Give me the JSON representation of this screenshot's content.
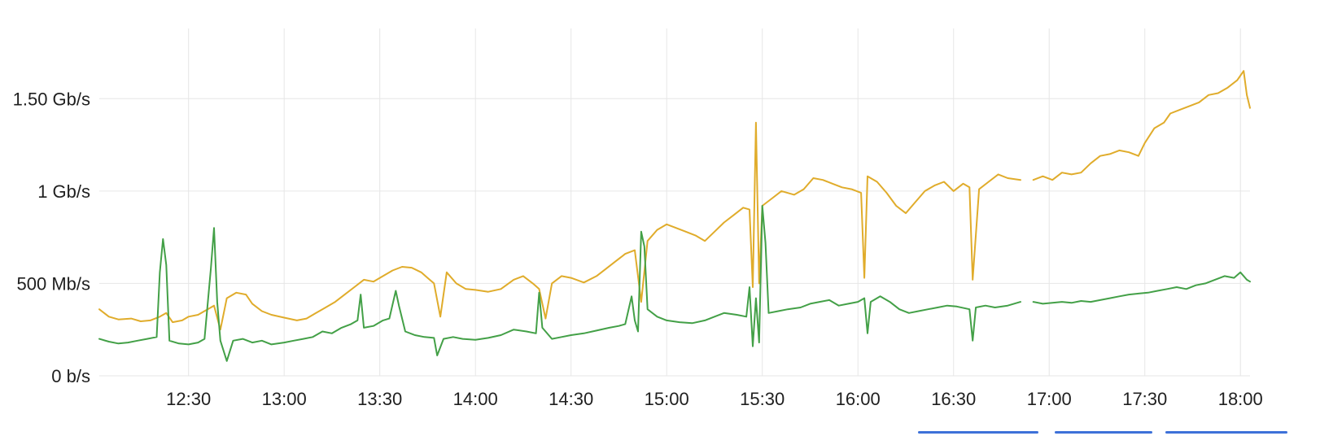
{
  "chart_data": {
    "type": "line",
    "title": "",
    "xlabel": "",
    "ylabel": "",
    "x_ticks": [
      "12:30",
      "13:00",
      "13:30",
      "14:00",
      "14:30",
      "15:00",
      "15:30",
      "16:00",
      "16:30",
      "17:00",
      "17:30",
      "18:00"
    ],
    "y_ticks": [
      {
        "label": "0 b/s",
        "value": 0
      },
      {
        "label": "500 Mb/s",
        "value": 500
      },
      {
        "label": "1 Gb/s",
        "value": 1000
      },
      {
        "label": "1.50 Gb/s",
        "value": 1500
      }
    ],
    "x_range": [
      "12:02",
      "18:03"
    ],
    "y_range_mbps": [
      0,
      1880
    ],
    "grid": true,
    "legend_placement": "bottom",
    "series": [
      {
        "color": "#e0ac2b",
        "points": [
          [
            "12:02",
            360
          ],
          [
            "12:05",
            320
          ],
          [
            "12:08",
            305
          ],
          [
            "12:12",
            310
          ],
          [
            "12:15",
            295
          ],
          [
            "12:18",
            300
          ],
          [
            "12:21",
            320
          ],
          [
            "12:23",
            340
          ],
          [
            "12:25",
            290
          ],
          [
            "12:28",
            300
          ],
          [
            "12:30",
            320
          ],
          [
            "12:33",
            330
          ],
          [
            "12:36",
            360
          ],
          [
            "12:38",
            380
          ],
          [
            "12:40",
            250
          ],
          [
            "12:42",
            420
          ],
          [
            "12:45",
            450
          ],
          [
            "12:48",
            440
          ],
          [
            "12:50",
            390
          ],
          [
            "12:53",
            350
          ],
          [
            "12:56",
            330
          ],
          [
            "13:00",
            315
          ],
          [
            "13:04",
            300
          ],
          [
            "13:07",
            310
          ],
          [
            "13:10",
            340
          ],
          [
            "13:13",
            370
          ],
          [
            "13:16",
            400
          ],
          [
            "13:19",
            440
          ],
          [
            "13:22",
            480
          ],
          [
            "13:25",
            520
          ],
          [
            "13:28",
            510
          ],
          [
            "13:31",
            540
          ],
          [
            "13:34",
            570
          ],
          [
            "13:37",
            590
          ],
          [
            "13:40",
            585
          ],
          [
            "13:43",
            560
          ],
          [
            "13:45",
            530
          ],
          [
            "13:47",
            500
          ],
          [
            "13:49",
            320
          ],
          [
            "13:51",
            560
          ],
          [
            "13:54",
            500
          ],
          [
            "13:57",
            470
          ],
          [
            "14:00",
            465
          ],
          [
            "14:04",
            455
          ],
          [
            "14:08",
            470
          ],
          [
            "14:12",
            520
          ],
          [
            "14:15",
            540
          ],
          [
            "14:18",
            500
          ],
          [
            "14:20",
            470
          ],
          [
            "14:22",
            310
          ],
          [
            "14:24",
            500
          ],
          [
            "14:27",
            540
          ],
          [
            "14:30",
            530
          ],
          [
            "14:34",
            505
          ],
          [
            "14:38",
            540
          ],
          [
            "14:41",
            580
          ],
          [
            "14:44",
            620
          ],
          [
            "14:47",
            660
          ],
          [
            "14:50",
            680
          ],
          [
            "14:52",
            400
          ],
          [
            "14:54",
            730
          ],
          [
            "14:57",
            790
          ],
          [
            "15:00",
            820
          ],
          [
            "15:03",
            800
          ],
          [
            "15:06",
            780
          ],
          [
            "15:09",
            760
          ],
          [
            "15:12",
            730
          ],
          [
            "15:15",
            780
          ],
          [
            "15:18",
            830
          ],
          [
            "15:21",
            870
          ],
          [
            "15:24",
            910
          ],
          [
            "15:26",
            900
          ],
          [
            "15:27",
            480
          ],
          [
            "15:28",
            1370
          ],
          [
            "15:29",
            500
          ],
          [
            "15:30",
            920
          ],
          [
            "15:33",
            960
          ],
          [
            "15:36",
            1000
          ],
          [
            "15:40",
            980
          ],
          [
            "15:43",
            1010
          ],
          [
            "15:46",
            1070
          ],
          [
            "15:49",
            1060
          ],
          [
            "15:52",
            1040
          ],
          [
            "15:55",
            1020
          ],
          [
            "15:58",
            1010
          ],
          [
            "16:01",
            990
          ],
          [
            "16:02",
            530
          ],
          [
            "16:03",
            1080
          ],
          [
            "16:06",
            1050
          ],
          [
            "16:09",
            990
          ],
          [
            "16:12",
            920
          ],
          [
            "16:15",
            880
          ],
          [
            "16:18",
            940
          ],
          [
            "16:21",
            1000
          ],
          [
            "16:24",
            1030
          ],
          [
            "16:27",
            1050
          ],
          [
            "16:30",
            1000
          ],
          [
            "16:33",
            1040
          ],
          [
            "16:35",
            1020
          ],
          [
            "16:36",
            520
          ],
          [
            "16:38",
            1010
          ],
          [
            "16:41",
            1050
          ],
          [
            "16:44",
            1090
          ],
          [
            "16:47",
            1070
          ],
          [
            "16:51",
            1060
          ],
          null,
          [
            "16:55",
            1060
          ],
          [
            "16:58",
            1080
          ],
          [
            "17:01",
            1060
          ],
          [
            "17:04",
            1100
          ],
          [
            "17:07",
            1090
          ],
          [
            "17:10",
            1100
          ],
          [
            "17:13",
            1150
          ],
          [
            "17:16",
            1190
          ],
          [
            "17:19",
            1200
          ],
          [
            "17:22",
            1220
          ],
          [
            "17:25",
            1210
          ],
          [
            "17:28",
            1190
          ],
          [
            "17:30",
            1260
          ],
          [
            "17:33",
            1340
          ],
          [
            "17:36",
            1370
          ],
          [
            "17:38",
            1420
          ],
          [
            "17:41",
            1440
          ],
          [
            "17:44",
            1460
          ],
          [
            "17:47",
            1480
          ],
          [
            "17:50",
            1520
          ],
          [
            "17:53",
            1530
          ],
          [
            "17:56",
            1560
          ],
          [
            "17:59",
            1600
          ],
          [
            "18:01",
            1650
          ],
          [
            "18:02",
            1520
          ],
          [
            "18:03",
            1450
          ]
        ]
      },
      {
        "color": "#43a047",
        "points": [
          [
            "12:02",
            200
          ],
          [
            "12:05",
            185
          ],
          [
            "12:08",
            175
          ],
          [
            "12:11",
            180
          ],
          [
            "12:14",
            190
          ],
          [
            "12:17",
            200
          ],
          [
            "12:20",
            210
          ],
          [
            "12:21",
            560
          ],
          [
            "12:22",
            740
          ],
          [
            "12:23",
            600
          ],
          [
            "12:24",
            190
          ],
          [
            "12:27",
            175
          ],
          [
            "12:30",
            170
          ],
          [
            "12:33",
            180
          ],
          [
            "12:35",
            200
          ],
          [
            "12:37",
            580
          ],
          [
            "12:38",
            800
          ],
          [
            "12:39",
            400
          ],
          [
            "12:40",
            190
          ],
          [
            "12:42",
            80
          ],
          [
            "12:44",
            190
          ],
          [
            "12:47",
            200
          ],
          [
            "12:50",
            180
          ],
          [
            "12:53",
            190
          ],
          [
            "12:56",
            170
          ],
          [
            "13:00",
            180
          ],
          [
            "13:03",
            190
          ],
          [
            "13:06",
            200
          ],
          [
            "13:09",
            210
          ],
          [
            "13:12",
            240
          ],
          [
            "13:15",
            230
          ],
          [
            "13:18",
            260
          ],
          [
            "13:21",
            280
          ],
          [
            "13:23",
            300
          ],
          [
            "13:24",
            440
          ],
          [
            "13:25",
            260
          ],
          [
            "13:28",
            270
          ],
          [
            "13:31",
            300
          ],
          [
            "13:33",
            310
          ],
          [
            "13:35",
            460
          ],
          [
            "13:36",
            380
          ],
          [
            "13:38",
            240
          ],
          [
            "13:41",
            220
          ],
          [
            "13:44",
            210
          ],
          [
            "13:47",
            205
          ],
          [
            "13:48",
            110
          ],
          [
            "13:50",
            200
          ],
          [
            "13:53",
            210
          ],
          [
            "13:56",
            200
          ],
          [
            "14:00",
            195
          ],
          [
            "14:04",
            205
          ],
          [
            "14:08",
            220
          ],
          [
            "14:12",
            250
          ],
          [
            "14:16",
            240
          ],
          [
            "14:19",
            230
          ],
          [
            "14:20",
            450
          ],
          [
            "14:21",
            260
          ],
          [
            "14:24",
            200
          ],
          [
            "14:27",
            210
          ],
          [
            "14:30",
            220
          ],
          [
            "14:34",
            230
          ],
          [
            "14:38",
            245
          ],
          [
            "14:42",
            260
          ],
          [
            "14:45",
            270
          ],
          [
            "14:47",
            280
          ],
          [
            "14:49",
            430
          ],
          [
            "14:50",
            300
          ],
          [
            "14:51",
            240
          ],
          [
            "14:52",
            780
          ],
          [
            "14:53",
            700
          ],
          [
            "14:54",
            360
          ],
          [
            "14:57",
            320
          ],
          [
            "15:00",
            300
          ],
          [
            "15:04",
            290
          ],
          [
            "15:08",
            285
          ],
          [
            "15:12",
            300
          ],
          [
            "15:15",
            320
          ],
          [
            "15:18",
            340
          ],
          [
            "15:22",
            330
          ],
          [
            "15:25",
            320
          ],
          [
            "15:26",
            480
          ],
          [
            "15:27",
            160
          ],
          [
            "15:28",
            420
          ],
          [
            "15:29",
            180
          ],
          [
            "15:30",
            920
          ],
          [
            "15:31",
            720
          ],
          [
            "15:32",
            340
          ],
          [
            "15:35",
            350
          ],
          [
            "15:38",
            360
          ],
          [
            "15:42",
            370
          ],
          [
            "15:45",
            390
          ],
          [
            "15:48",
            400
          ],
          [
            "15:51",
            410
          ],
          [
            "15:54",
            380
          ],
          [
            "15:57",
            390
          ],
          [
            "16:00",
            400
          ],
          [
            "16:02",
            420
          ],
          [
            "16:03",
            230
          ],
          [
            "16:04",
            400
          ],
          [
            "16:07",
            430
          ],
          [
            "16:10",
            400
          ],
          [
            "16:13",
            360
          ],
          [
            "16:16",
            340
          ],
          [
            "16:19",
            350
          ],
          [
            "16:22",
            360
          ],
          [
            "16:25",
            370
          ],
          [
            "16:28",
            380
          ],
          [
            "16:31",
            375
          ],
          [
            "16:35",
            360
          ],
          [
            "16:36",
            190
          ],
          [
            "16:37",
            370
          ],
          [
            "16:40",
            380
          ],
          [
            "16:43",
            370
          ],
          [
            "16:47",
            380
          ],
          [
            "16:51",
            400
          ],
          null,
          [
            "16:55",
            400
          ],
          [
            "16:58",
            390
          ],
          [
            "17:01",
            395
          ],
          [
            "17:04",
            400
          ],
          [
            "17:07",
            395
          ],
          [
            "17:10",
            405
          ],
          [
            "17:13",
            400
          ],
          [
            "17:16",
            410
          ],
          [
            "17:19",
            420
          ],
          [
            "17:22",
            430
          ],
          [
            "17:25",
            440
          ],
          [
            "17:28",
            445
          ],
          [
            "17:31",
            450
          ],
          [
            "17:34",
            460
          ],
          [
            "17:37",
            470
          ],
          [
            "17:40",
            480
          ],
          [
            "17:43",
            470
          ],
          [
            "17:46",
            490
          ],
          [
            "17:49",
            500
          ],
          [
            "17:52",
            520
          ],
          [
            "17:55",
            540
          ],
          [
            "17:58",
            530
          ],
          [
            "18:00",
            560
          ],
          [
            "18:02",
            520
          ],
          [
            "18:03",
            510
          ]
        ]
      }
    ]
  }
}
